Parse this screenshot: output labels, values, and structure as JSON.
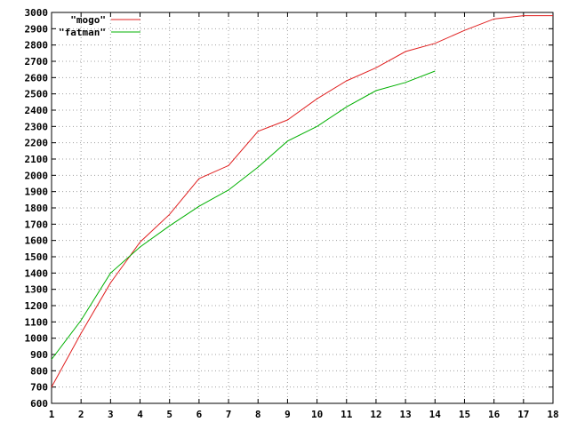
{
  "chart_data": {
    "type": "line",
    "x": [
      1,
      2,
      3,
      4,
      5,
      6,
      7,
      8,
      9,
      10,
      11,
      12,
      13,
      14,
      15,
      16,
      17,
      18
    ],
    "xlim": [
      1,
      18
    ],
    "ylim": [
      600,
      3000
    ],
    "x_ticks": [
      1,
      2,
      3,
      4,
      5,
      6,
      7,
      8,
      9,
      10,
      11,
      12,
      13,
      14,
      15,
      16,
      17,
      18
    ],
    "y_ticks": [
      600,
      700,
      800,
      900,
      1000,
      1100,
      1200,
      1300,
      1400,
      1500,
      1600,
      1700,
      1800,
      1900,
      2000,
      2100,
      2200,
      2300,
      2400,
      2500,
      2600,
      2700,
      2800,
      2900,
      3000
    ],
    "grid": true,
    "legend_position": "top-left",
    "series": [
      {
        "name": "\"mogo\"",
        "color": "#e02020",
        "x": [
          1,
          2,
          3,
          4,
          5,
          6,
          7,
          8,
          9,
          10,
          11,
          12,
          13,
          14,
          15,
          16,
          17,
          18
        ],
        "values": [
          700,
          1030,
          1340,
          1590,
          1760,
          1980,
          2060,
          2270,
          2340,
          2470,
          2580,
          2660,
          2760,
          2810,
          2890,
          2960,
          2980,
          2980
        ]
      },
      {
        "name": "\"fatman\"",
        "color": "#00b000",
        "x": [
          1,
          2,
          3,
          4,
          5,
          6,
          7,
          8,
          9,
          10,
          11,
          12,
          13,
          14
        ],
        "values": [
          870,
          1110,
          1400,
          1560,
          1690,
          1810,
          1910,
          2050,
          2210,
          2300,
          2420,
          2520,
          2570,
          2640
        ]
      }
    ]
  }
}
